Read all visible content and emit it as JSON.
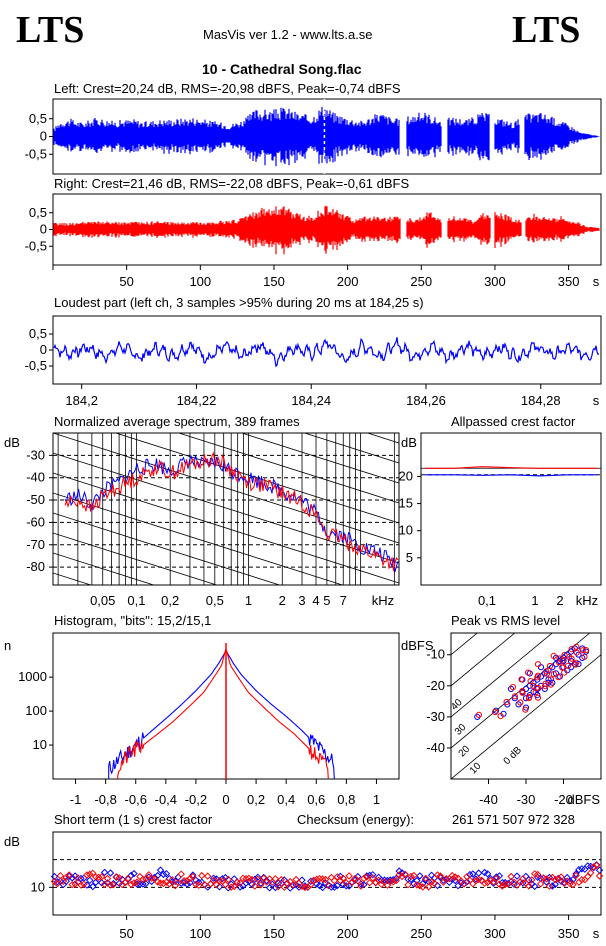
{
  "header": {
    "logo_left": "LTS",
    "logo_right": "LTS",
    "app_title": "MasVis ver 1.2 - www.lts.a.se",
    "track_title": "10 - Cathedral Song.flac"
  },
  "colors": {
    "left": "#0000ff",
    "right": "#ff0000",
    "frame": "#000000"
  },
  "chart_data": [
    {
      "id": "left-waveform",
      "type": "area",
      "title": "Left: Crest=20,24 dB, RMS=-20,98 dBFS, Peak=-0,74 dBFS",
      "yticks": [
        "0,5",
        "0",
        "-0,5"
      ],
      "ylim": [
        -1,
        1
      ],
      "xlim": [
        0,
        372
      ],
      "marker_x": 184.25,
      "envelope": [
        [
          0,
          0.2
        ],
        [
          5,
          0.45
        ],
        [
          12,
          0.5
        ],
        [
          20,
          0.4
        ],
        [
          30,
          0.55
        ],
        [
          40,
          0.45
        ],
        [
          55,
          0.5
        ],
        [
          62,
          0.42
        ],
        [
          70,
          0.48
        ],
        [
          80,
          0.5
        ],
        [
          95,
          0.55
        ],
        [
          108,
          0.45
        ],
        [
          120,
          0.35
        ],
        [
          130,
          0.5
        ],
        [
          138,
          0.8
        ],
        [
          148,
          0.75
        ],
        [
          158,
          0.85
        ],
        [
          168,
          0.65
        ],
        [
          176,
          0.6
        ],
        [
          184,
          0.95
        ],
        [
          190,
          0.7
        ],
        [
          200,
          0.55
        ],
        [
          210,
          0.45
        ],
        [
          222,
          0.7
        ],
        [
          232,
          0.5
        ],
        [
          242,
          0.6
        ],
        [
          252,
          0.72
        ],
        [
          262,
          0.5
        ],
        [
          272,
          0.55
        ],
        [
          282,
          0.5
        ],
        [
          292,
          0.7
        ],
        [
          302,
          0.55
        ],
        [
          312,
          0.4
        ],
        [
          322,
          0.65
        ],
        [
          332,
          0.7
        ],
        [
          342,
          0.5
        ],
        [
          350,
          0.35
        ],
        [
          358,
          0.12
        ],
        [
          366,
          0.05
        ],
        [
          372,
          0
        ]
      ],
      "gaps": [
        [
          235,
          240
        ],
        [
          264,
          268
        ],
        [
          296,
          300
        ],
        [
          317,
          320
        ]
      ]
    },
    {
      "id": "right-waveform",
      "type": "area",
      "title": "Right: Crest=21,46 dB, RMS=-22,08 dBFS, Peak=-0,61 dBFS",
      "yticks": [
        "0,5",
        "0",
        "-0,5"
      ],
      "ylim": [
        -1,
        1
      ],
      "xlim": [
        0,
        372
      ],
      "xticks": [
        50,
        100,
        150,
        200,
        250,
        300,
        350
      ],
      "xunit": "s",
      "envelope": [
        [
          0,
          0.2
        ],
        [
          10,
          0.2
        ],
        [
          30,
          0.25
        ],
        [
          50,
          0.22
        ],
        [
          70,
          0.25
        ],
        [
          90,
          0.22
        ],
        [
          110,
          0.25
        ],
        [
          125,
          0.3
        ],
        [
          135,
          0.55
        ],
        [
          145,
          0.7
        ],
        [
          155,
          0.75
        ],
        [
          165,
          0.5
        ],
        [
          175,
          0.4
        ],
        [
          185,
          0.75
        ],
        [
          195,
          0.55
        ],
        [
          205,
          0.3
        ],
        [
          215,
          0.45
        ],
        [
          225,
          0.35
        ],
        [
          235,
          0.5
        ],
        [
          245,
          0.3
        ],
        [
          255,
          0.55
        ],
        [
          265,
          0.3
        ],
        [
          275,
          0.45
        ],
        [
          285,
          0.25
        ],
        [
          295,
          0.6
        ],
        [
          305,
          0.5
        ],
        [
          315,
          0.3
        ],
        [
          325,
          0.5
        ],
        [
          335,
          0.35
        ],
        [
          345,
          0.4
        ],
        [
          355,
          0.25
        ],
        [
          362,
          0.1
        ],
        [
          372,
          0.05
        ]
      ],
      "gaps": [
        [
          236,
          240
        ],
        [
          264,
          268
        ],
        [
          297,
          300
        ],
        [
          318,
          321
        ]
      ]
    },
    {
      "id": "loudest-part",
      "type": "line",
      "title": "Loudest part (left  ch, 3 samples >95% during 20 ms at 184,25 s)",
      "yticks": [
        "0,5",
        "0",
        "-0,5"
      ],
      "ylim": [
        -1,
        1
      ],
      "xlim": [
        184.195,
        184.2905
      ],
      "xticks": [
        "184,2",
        "184,22",
        "184,24",
        "184,26",
        "184,28"
      ],
      "xunit": "s",
      "x": [
        184.195,
        184.198,
        184.201,
        184.204,
        184.207,
        184.21,
        184.213,
        184.216,
        184.219,
        184.222,
        184.225,
        184.228,
        184.231,
        184.234,
        184.237,
        184.24,
        184.243,
        184.246,
        184.249,
        184.252,
        184.255,
        184.258,
        184.261,
        184.264,
        184.267,
        184.27,
        184.273,
        184.276,
        184.279,
        184.282,
        184.285,
        184.288,
        184.2905
      ],
      "y": [
        0.1,
        -0.2,
        0.15,
        -0.35,
        0.2,
        -0.4,
        0.1,
        -0.3,
        0.25,
        -0.45,
        0.2,
        -0.35,
        0.3,
        -0.5,
        0.15,
        -0.2,
        0.35,
        -0.55,
        0.25,
        -0.3,
        0.3,
        -0.35,
        0.2,
        -0.4,
        0.25,
        -0.3,
        0.15,
        -0.35,
        0.2,
        -0.25,
        0.1,
        -0.3,
        0.2
      ]
    },
    {
      "id": "avg-spectrum",
      "type": "line",
      "title": "Normalized average spectrum, 389 frames",
      "ylabel": "dB",
      "yticks": [
        "-30",
        "-40",
        "-50",
        "-60",
        "-70",
        "-80"
      ],
      "ylim": [
        -88,
        -20
      ],
      "xticks": [
        "0,05",
        "0,1",
        "0,2",
        "0,5",
        "1",
        "2",
        "3",
        "4",
        "5",
        "7"
      ],
      "xunit": "kHz",
      "series": [
        {
          "color": "left",
          "points": [
            [
              0.022,
              -50
            ],
            [
              0.03,
              -48
            ],
            [
              0.04,
              -52
            ],
            [
              0.05,
              -46
            ],
            [
              0.07,
              -42
            ],
            [
              0.1,
              -36
            ],
            [
              0.15,
              -34
            ],
            [
              0.2,
              -37
            ],
            [
              0.3,
              -32
            ],
            [
              0.4,
              -35
            ],
            [
              0.5,
              -33
            ],
            [
              0.7,
              -37
            ],
            [
              1,
              -40
            ],
            [
              1.5,
              -43
            ],
            [
              2,
              -46
            ],
            [
              3,
              -50
            ],
            [
              4,
              -56
            ],
            [
              5,
              -64
            ],
            [
              7,
              -66
            ],
            [
              10,
              -71
            ],
            [
              15,
              -74
            ],
            [
              20,
              -79
            ]
          ]
        },
        {
          "color": "right",
          "points": [
            [
              0.022,
              -52
            ],
            [
              0.03,
              -50
            ],
            [
              0.04,
              -54
            ],
            [
              0.05,
              -48
            ],
            [
              0.07,
              -44
            ],
            [
              0.1,
              -40
            ],
            [
              0.15,
              -35
            ],
            [
              0.2,
              -38
            ],
            [
              0.3,
              -34
            ],
            [
              0.4,
              -33
            ],
            [
              0.5,
              -31
            ],
            [
              0.7,
              -37
            ],
            [
              1,
              -42
            ],
            [
              1.5,
              -44
            ],
            [
              2,
              -47
            ],
            [
              3,
              -51
            ],
            [
              4,
              -57
            ],
            [
              5,
              -65
            ],
            [
              7,
              -68
            ],
            [
              10,
              -72
            ],
            [
              15,
              -76
            ],
            [
              20,
              -79
            ]
          ]
        }
      ]
    },
    {
      "id": "allpassed-crest",
      "type": "line",
      "title": "Allpassed crest factor",
      "ylabel": "dB",
      "yticks": [
        "20",
        "15",
        "10",
        "5"
      ],
      "ylim": [
        0,
        28
      ],
      "xticks": [
        "0,1",
        "1",
        "2"
      ],
      "xunit": "kHz",
      "series": [
        {
          "color": "right",
          "y": [
            21.5,
            21.5,
            21.8,
            21.6,
            21.5,
            21.5,
            21.5
          ]
        },
        {
          "color": "left",
          "y": [
            20.3,
            20.3,
            20.2,
            20.3,
            20.1,
            20.3,
            20.3
          ]
        }
      ],
      "ref_solid": 21.5,
      "ref_dashed": 20.3
    },
    {
      "id": "histogram",
      "type": "line",
      "title": "Histogram, \"bits\": 15,2/15,1",
      "ylabel": "n",
      "yticks": [
        "1000",
        "100",
        "10"
      ],
      "ylog": true,
      "ylim": [
        1,
        20000
      ],
      "xticks": [
        "-1",
        "-0,8",
        "-0,6",
        "-0,4",
        "-0,2",
        "0",
        "0,2",
        "0,4",
        "0,6",
        "0,8",
        "1"
      ],
      "xlim": [
        -1.15,
        1.15
      ],
      "series": [
        {
          "color": "left",
          "x": [
            -0.78,
            -0.7,
            -0.6,
            -0.5,
            -0.4,
            -0.3,
            -0.2,
            -0.1,
            -0.05,
            0,
            0.05,
            0.1,
            0.2,
            0.3,
            0.4,
            0.5,
            0.6,
            0.72
          ],
          "y": [
            2,
            4,
            10,
            25,
            60,
            150,
            400,
            1200,
            2500,
            6000,
            2500,
            1200,
            400,
            160,
            70,
            28,
            10,
            3
          ]
        },
        {
          "color": "right",
          "x": [
            -0.72,
            -0.65,
            -0.55,
            -0.45,
            -0.35,
            -0.25,
            -0.15,
            -0.08,
            -0.03,
            0,
            0.03,
            0.08,
            0.15,
            0.25,
            0.35,
            0.45,
            0.55,
            0.68
          ],
          "y": [
            2,
            5,
            10,
            22,
            50,
            130,
            350,
            1000,
            2200,
            7000,
            2200,
            1000,
            350,
            130,
            50,
            22,
            8,
            2
          ]
        }
      ]
    },
    {
      "id": "peak-vs-rms",
      "type": "scatter",
      "title": "Peak vs RMS level",
      "xunit": "dBFS",
      "yunit": "dBFS",
      "xticks": [
        "-40",
        "-30",
        "-20"
      ],
      "yticks": [
        "-10",
        "-20",
        "-30",
        "-40"
      ],
      "xlim": [
        -50,
        -10
      ],
      "ylim": [
        -50,
        -3
      ],
      "diagonal_labels": [
        "40",
        "30",
        "20",
        "10",
        "0 dB"
      ],
      "points": [
        [
          -35,
          -26
        ],
        [
          -33,
          -24
        ],
        [
          -31,
          -22
        ],
        [
          -30,
          -21
        ],
        [
          -29,
          -20
        ],
        [
          -28,
          -19
        ],
        [
          -27,
          -18
        ],
        [
          -26,
          -17
        ],
        [
          -25,
          -16
        ],
        [
          -24,
          -15
        ],
        [
          -23,
          -14
        ],
        [
          -22,
          -13
        ],
        [
          -21,
          -12
        ],
        [
          -20,
          -11
        ],
        [
          -19,
          -10
        ],
        [
          -18,
          -9
        ],
        [
          -17,
          -8
        ],
        [
          -32,
          -26
        ],
        [
          -30,
          -24
        ],
        [
          -28,
          -22
        ],
        [
          -26,
          -20
        ],
        [
          -24,
          -18
        ],
        [
          -22,
          -16
        ],
        [
          -20,
          -14
        ],
        [
          -18,
          -12
        ],
        [
          -16,
          -10
        ],
        [
          -27,
          -23
        ],
        [
          -25,
          -21
        ],
        [
          -23,
          -19
        ],
        [
          -21,
          -17
        ],
        [
          -19,
          -15
        ],
        [
          -17,
          -13
        ],
        [
          -15,
          -11
        ],
        [
          -14,
          -9
        ],
        [
          -43,
          -30
        ],
        [
          -38,
          -28
        ],
        [
          -36,
          -29
        ],
        [
          -34,
          -21
        ],
        [
          -31,
          -18
        ],
        [
          -29,
          -16
        ],
        [
          -26,
          -14
        ],
        [
          -22,
          -11
        ],
        [
          -20,
          -12
        ],
        [
          -18,
          -14
        ],
        [
          -16,
          -13
        ],
        [
          -15,
          -8
        ],
        [
          -24,
          -19
        ],
        [
          -27,
          -21
        ],
        [
          -29,
          -23
        ],
        [
          -30,
          -27
        ]
      ]
    },
    {
      "id": "short-term-crest",
      "type": "scatter",
      "title": "Short term (1 s) crest factor",
      "checksum_label": "Checksum (energy):",
      "checksum_value": "261 571 507 972 328",
      "ylabel": "dB",
      "yticks": [
        "10"
      ],
      "ylim": [
        0,
        30
      ],
      "xticks": [
        50,
        100,
        150,
        200,
        250,
        300,
        350
      ],
      "xunit": "s",
      "xlim": [
        0,
        372
      ],
      "series": [
        {
          "color": "left",
          "x": [
            5,
            15,
            25,
            35,
            45,
            55,
            65,
            75,
            85,
            95,
            105,
            115,
            125,
            135,
            145,
            155,
            165,
            175,
            185,
            195,
            205,
            215,
            225,
            235,
            245,
            255,
            265,
            275,
            285,
            295,
            305,
            315,
            325,
            335,
            345,
            355,
            365
          ],
          "y": [
            12,
            13,
            11,
            14,
            12,
            13,
            12,
            15,
            12,
            13,
            12,
            12,
            11,
            12,
            12,
            11,
            12,
            12,
            11,
            12,
            12,
            13,
            12,
            14,
            12,
            13,
            12,
            12,
            13,
            14,
            12,
            13,
            12,
            13,
            11,
            15,
            17
          ]
        },
        {
          "color": "right",
          "x": [
            8,
            18,
            28,
            38,
            48,
            58,
            68,
            78,
            88,
            98,
            108,
            118,
            128,
            138,
            148,
            158,
            168,
            178,
            188,
            198,
            208,
            218,
            228,
            238,
            248,
            258,
            268,
            278,
            288,
            298,
            308,
            318,
            328,
            338,
            348,
            358,
            368
          ],
          "y": [
            13,
            12,
            14,
            12,
            13,
            12,
            14,
            12,
            13,
            12,
            13,
            11,
            12,
            12,
            11,
            12,
            11,
            12,
            12,
            13,
            12,
            12,
            12,
            13,
            12,
            12,
            14,
            13,
            12,
            13,
            12,
            12,
            13,
            12,
            12,
            13,
            16
          ]
        }
      ]
    }
  ]
}
